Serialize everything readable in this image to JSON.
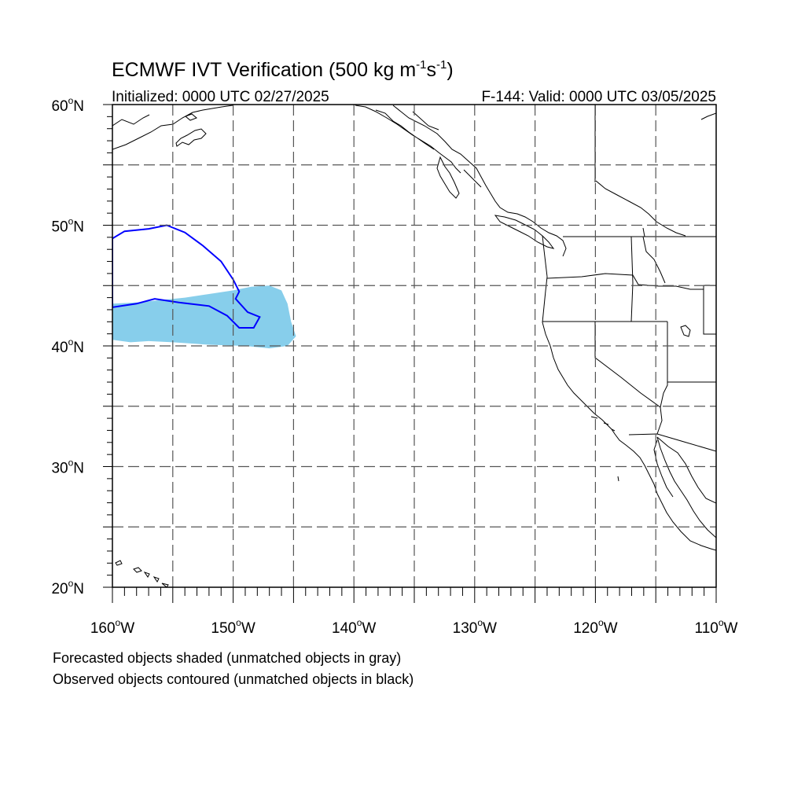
{
  "title": {
    "main": "ECMWF IVT Verification (500 kg m",
    "exp1": "-1",
    "mid": "s",
    "exp2": "-1",
    "close": ")"
  },
  "subtitle_left": "Initialized: 0000 UTC 02/27/2025",
  "subtitle_right": "F-144: Valid: 0000 UTC 03/05/2025",
  "map": {
    "lon_range": [
      -160,
      -110
    ],
    "lat_range": [
      20,
      60
    ],
    "gridlines": "dashed",
    "grid_step_deg": 5,
    "lat_labels": [
      {
        "value": 60,
        "deg": "60",
        "suffix": "N"
      },
      {
        "value": 50,
        "deg": "50",
        "suffix": "N"
      },
      {
        "value": 40,
        "deg": "40",
        "suffix": "N"
      },
      {
        "value": 30,
        "deg": "30",
        "suffix": "N"
      },
      {
        "value": 20,
        "deg": "20",
        "suffix": "N"
      }
    ],
    "lon_labels": [
      {
        "value": -160,
        "deg": "160",
        "suffix": "W"
      },
      {
        "value": -150,
        "deg": "150",
        "suffix": "W"
      },
      {
        "value": -140,
        "deg": "140",
        "suffix": "W"
      },
      {
        "value": -130,
        "deg": "130",
        "suffix": "W"
      },
      {
        "value": -120,
        "deg": "120",
        "suffix": "W"
      },
      {
        "value": -110,
        "deg": "110",
        "suffix": "W"
      }
    ],
    "forecast_object": {
      "color": "#87CEEB",
      "polygon": [
        [
          -160,
          43.5
        ],
        [
          -158,
          43.6
        ],
        [
          -156,
          43.8
        ],
        [
          -154,
          44.0
        ],
        [
          -152,
          44.3
        ],
        [
          -150,
          44.6
        ],
        [
          -148.5,
          44.9
        ],
        [
          -147,
          45.0
        ],
        [
          -146,
          44.6
        ],
        [
          -145.5,
          43.5
        ],
        [
          -145.2,
          42.0
        ],
        [
          -144.8,
          40.8
        ],
        [
          -145.5,
          40.0
        ],
        [
          -147,
          39.8
        ],
        [
          -149,
          40.0
        ],
        [
          -152,
          40.1
        ],
        [
          -155,
          40.3
        ],
        [
          -157,
          40.4
        ],
        [
          -158.5,
          40.3
        ],
        [
          -160,
          40.5
        ]
      ]
    },
    "observed_object": {
      "color": "#0000FF",
      "polygon": [
        [
          -160,
          48.9
        ],
        [
          -159,
          49.5
        ],
        [
          -157,
          49.7
        ],
        [
          -155.5,
          50.0
        ],
        [
          -154,
          49.4
        ],
        [
          -152.5,
          48.3
        ],
        [
          -151,
          47.0
        ],
        [
          -150,
          45.5
        ],
        [
          -149.5,
          44.5
        ],
        [
          -149.8,
          43.9
        ],
        [
          -148.8,
          42.8
        ],
        [
          -147.8,
          42.4
        ],
        [
          -148.3,
          41.5
        ],
        [
          -149.5,
          41.5
        ],
        [
          -150.5,
          42.5
        ],
        [
          -152,
          43.3
        ],
        [
          -154.5,
          43.6
        ],
        [
          -156.5,
          43.9
        ],
        [
          -158,
          43.5
        ],
        [
          -160,
          43.2
        ]
      ]
    }
  },
  "footnotes": [
    "Forecasted objects shaded (unmatched objects in gray)",
    "Observed objects contoured (unmatched objects in black)"
  ]
}
